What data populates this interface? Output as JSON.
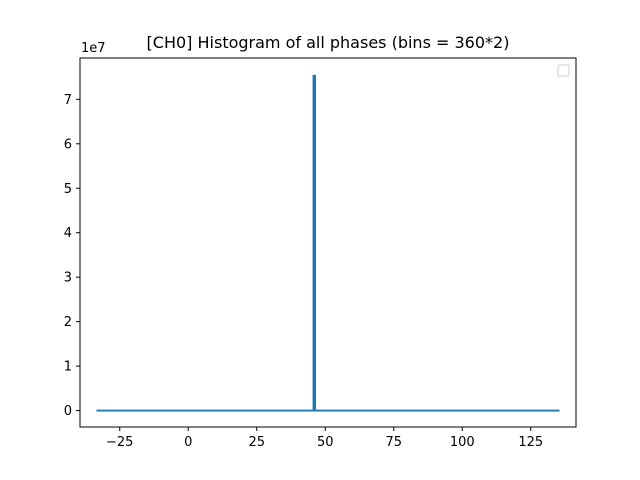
{
  "chart_data": {
    "type": "line",
    "title": "[CH0] Histogram of all phases (bins = 360*2)",
    "xlabel": "",
    "ylabel": "",
    "y_offset_label": "1e7",
    "xlim": [
      -39.5,
      141.5
    ],
    "ylim": [
      -3.7,
      79.3
    ],
    "x_ticks": [
      -25,
      0,
      25,
      50,
      75,
      100,
      125
    ],
    "x_tick_labels": [
      "−25",
      "0",
      "25",
      "50",
      "75",
      "100",
      "125"
    ],
    "y_ticks": [
      0,
      10,
      20,
      30,
      40,
      50,
      60,
      70
    ],
    "y_tick_labels": [
      "0",
      "1",
      "2",
      "3",
      "4",
      "5",
      "6",
      "7"
    ],
    "grid": false,
    "legend": "top-right (empty)",
    "series": [
      {
        "x": [
          -33.5,
          45.7,
          45.7,
          46.3,
          46.3,
          135.5
        ],
        "y": [
          0,
          0,
          75.3,
          75.3,
          0,
          0
        ]
      }
    ]
  },
  "colors": {
    "series": "#1f77b4",
    "axes": "#000000",
    "legend_border": "#cccccc"
  }
}
